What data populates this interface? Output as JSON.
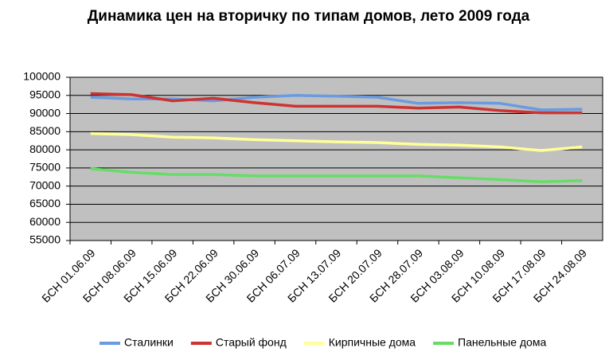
{
  "chart_data": {
    "type": "line",
    "title": "Динамика цен на вторичку по типам домов, лето 2009 года",
    "categories": [
      "БСН 01.06.09",
      "БСН 08.06.09",
      "БСН 15.06.09",
      "БСН 22.06.09",
      "БСН 30.06.09",
      "БСН 06.07.09",
      "БСН 13.07.09",
      "БСН 20.07.09",
      "БСН 28.07.09",
      "БСН 03.08.09",
      "БСН 10.08.09",
      "БСН 17.08.09",
      "БСН 24.08.09"
    ],
    "series": [
      {
        "name": "Сталинки",
        "color": "#6a9be0",
        "values": [
          94500,
          94000,
          94000,
          93500,
          94500,
          95000,
          94800,
          94500,
          92800,
          93000,
          92800,
          91000,
          91200
        ]
      },
      {
        "name": "Старый фонд",
        "color": "#cc3333",
        "values": [
          95500,
          95200,
          93500,
          94200,
          93000,
          92000,
          92000,
          92000,
          91500,
          91800,
          90800,
          90200,
          90200
        ]
      },
      {
        "name": "Кирпичные дома",
        "color": "#ffff99",
        "values": [
          84500,
          84200,
          83500,
          83300,
          82800,
          82500,
          82200,
          82000,
          81500,
          81300,
          80800,
          79800,
          80800
        ]
      },
      {
        "name": "Панельные дома",
        "color": "#66dd66",
        "values": [
          74800,
          73800,
          73200,
          73200,
          72800,
          72800,
          72800,
          72800,
          72800,
          72300,
          71800,
          71200,
          71500
        ]
      }
    ],
    "ylim": [
      55000,
      100000
    ],
    "yticks": [
      55000,
      60000,
      65000,
      70000,
      75000,
      80000,
      85000,
      90000,
      95000,
      100000
    ],
    "grid": true,
    "plot_background": "#c0c0c0",
    "legend": "bottom"
  }
}
